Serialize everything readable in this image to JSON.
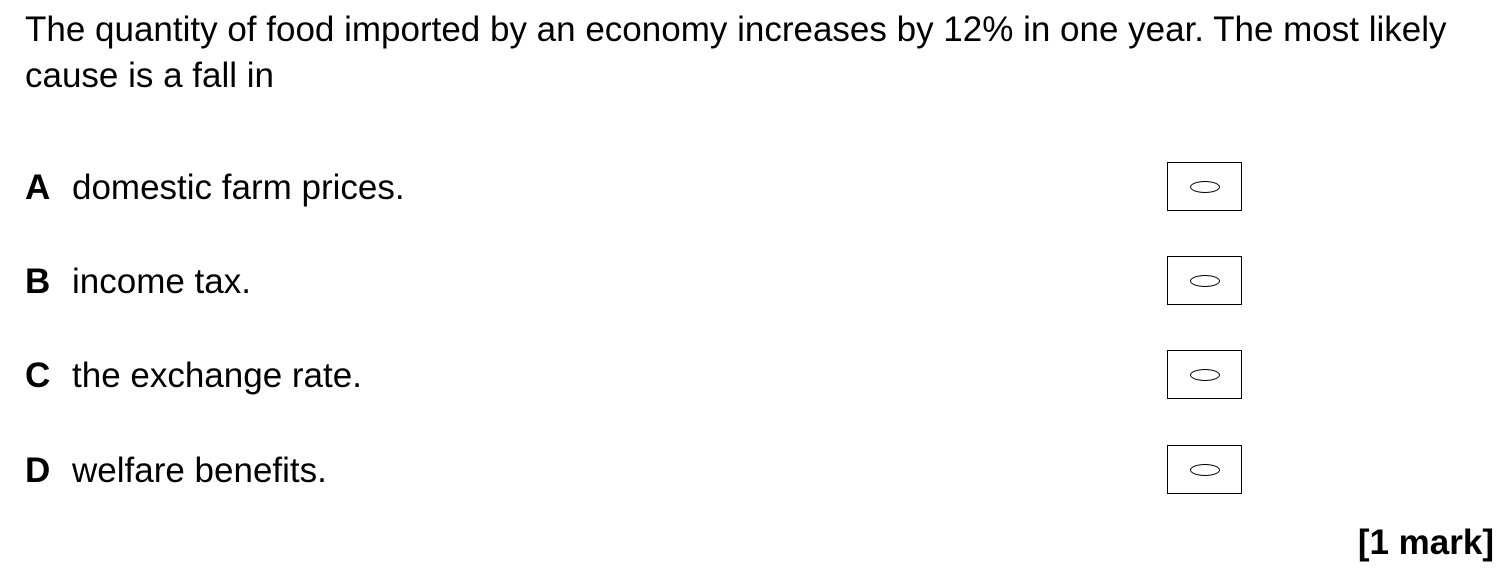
{
  "question": {
    "stem": "The quantity of food imported by an economy increases by 12% in one year.  The most likely cause is a fall in"
  },
  "options": [
    {
      "letter": "A",
      "text": "domestic farm prices."
    },
    {
      "letter": "B",
      "text": "income tax."
    },
    {
      "letter": "C",
      "text": "the exchange rate."
    },
    {
      "letter": "D",
      "text": "welfare benefits."
    }
  ],
  "marks": {
    "label": "[1 mark]"
  }
}
